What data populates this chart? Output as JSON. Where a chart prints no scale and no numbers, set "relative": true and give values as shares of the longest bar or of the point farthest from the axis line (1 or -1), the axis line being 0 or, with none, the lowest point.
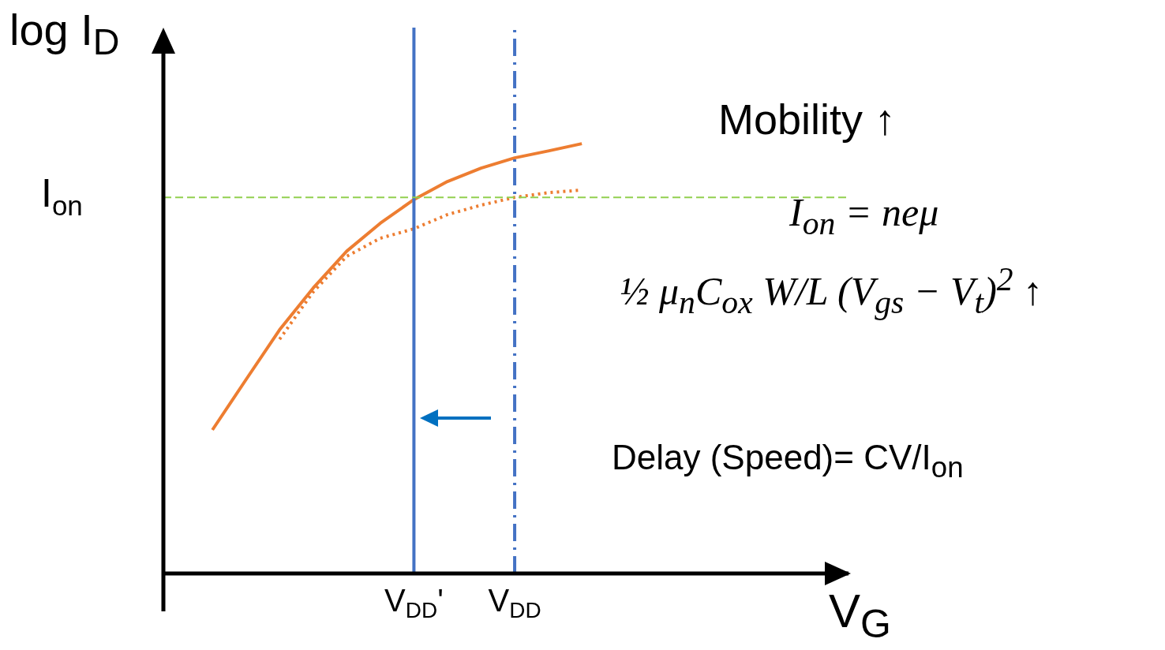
{
  "chart_data": {
    "type": "line",
    "relative": true,
    "xlabel": "V$_{G}$",
    "ylabel": "log I$_{D}$",
    "categories": [
      null,
      null,
      null,
      null,
      null,
      null,
      null,
      "V$_{DD}$'",
      null,
      null,
      "V$_{DD}$",
      null,
      null,
      null
    ],
    "series": [
      {
        "color": "#ed7d31",
        "line_style": "solid",
        "values": [
          null,
          0.334,
          0.451,
          0.567,
          0.664,
          0.75,
          0.815,
          0.87,
          0.912,
          0.943,
          0.967,
          0.983,
          1,
          null
        ]
      },
      {
        "color": "#ed7d31",
        "line_style": "dotted",
        "values": [
          null,
          null,
          null,
          0.545,
          0.655,
          0.738,
          0.78,
          0.802,
          0.835,
          0.857,
          0.875,
          0.886,
          0.892,
          null
        ]
      }
    ],
    "ref_lines": [
      {
        "axis": "x",
        "value": "V$_{DD}$'",
        "color": "#4472c4",
        "line_style": "solid"
      },
      {
        "axis": "x",
        "value": "V$_{DD}$",
        "color": "#4472c4",
        "line_style": "dashed"
      },
      {
        "axis": "y",
        "value": 0.875,
        "label": "I$_{on}$",
        "color": "#92d050",
        "line_style": "dashed"
      }
    ],
    "annotations": [
      "Mobility ↑",
      "I$_{on}$ = neμ",
      "½ μ$_{n}$C$_{ox}$ W/L (V$_{gs}$ − V$_{t}$)$^{2}$ ↑",
      "Delay (Speed)= CV/I$_{on}$"
    ],
    "marker": "none"
  }
}
